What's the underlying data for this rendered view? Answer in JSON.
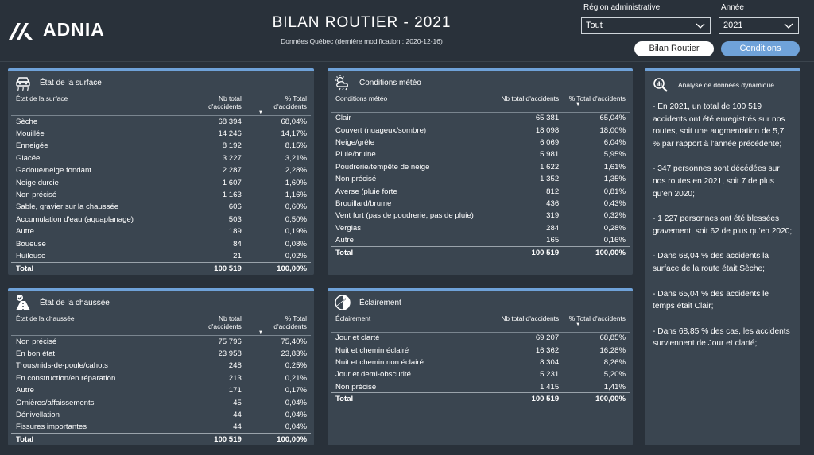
{
  "header": {
    "logo_text": "ADNIA",
    "title": "BILAN ROUTIER - 2021",
    "subtitle": "Données Québec (dernière modification : 2020-12-16)"
  },
  "filters": {
    "region_label": "Région administrative",
    "region_value": "Tout",
    "year_label": "Année",
    "year_value": "2021"
  },
  "nav": {
    "bilan_label": "Bilan Routier",
    "conditions_label": "Conditions"
  },
  "colors": {
    "accent": "#6fa2d9",
    "background": "#29313a",
    "card": "#3a4550"
  },
  "surface": {
    "title": "État de la surface",
    "icon": "car-skid-icon",
    "columns": [
      "État de la surface",
      "Nb total d'accidents",
      "% Total d'accidents"
    ],
    "rows": [
      [
        "Sèche",
        "68 394",
        "68,04%"
      ],
      [
        "Mouillée",
        "14 246",
        "14,17%"
      ],
      [
        "Enneigée",
        "8 192",
        "8,15%"
      ],
      [
        "Glacée",
        "3 227",
        "3,21%"
      ],
      [
        "Gadoue/neige fondant",
        "2 287",
        "2,28%"
      ],
      [
        "Neige durcie",
        "1 607",
        "1,60%"
      ],
      [
        "Non précisé",
        "1 163",
        "1,16%"
      ],
      [
        "Sable, gravier sur la chaussée",
        "606",
        "0,60%"
      ],
      [
        "Accumulation d'eau (aquaplanage)",
        "503",
        "0,50%"
      ],
      [
        "Autre",
        "189",
        "0,19%"
      ],
      [
        "Boueuse",
        "84",
        "0,08%"
      ],
      [
        "Huileuse",
        "21",
        "0,02%"
      ]
    ],
    "total": [
      "Total",
      "100 519",
      "100,00%"
    ]
  },
  "meteo": {
    "title": "Conditions météo",
    "icon": "weather-icon",
    "columns": [
      "Conditions météo",
      "Nb total d'accidents",
      "% Total d'accidents"
    ],
    "rows": [
      [
        "Clair",
        "65 381",
        "65,04%"
      ],
      [
        "Couvert (nuageux/sombre)",
        "18 098",
        "18,00%"
      ],
      [
        "Neige/grêle",
        "6 069",
        "6,04%"
      ],
      [
        "Pluie/bruine",
        "5 981",
        "5,95%"
      ],
      [
        "Poudrerie/tempête de neige",
        "1 622",
        "1,61%"
      ],
      [
        "Non précisé",
        "1 352",
        "1,35%"
      ],
      [
        "Averse (pluie forte",
        "812",
        "0,81%"
      ],
      [
        "Brouillard/brume",
        "436",
        "0,43%"
      ],
      [
        "Vent fort (pas de poudrerie, pas de pluie)",
        "319",
        "0,32%"
      ],
      [
        "Verglas",
        "284",
        "0,28%"
      ],
      [
        "Autre",
        "165",
        "0,16%"
      ]
    ],
    "total": [
      "Total",
      "100 519",
      "100,00%"
    ]
  },
  "chaussee": {
    "title": "État de la chaussée",
    "icon": "road-check-icon",
    "columns": [
      "État de la chaussée",
      "Nb total d'accidents",
      "% Total d'accidents"
    ],
    "rows": [
      [
        "Non précisé",
        "75 796",
        "75,40%"
      ],
      [
        "En bon état",
        "23 958",
        "23,83%"
      ],
      [
        "Trous/nids-de-poule/cahots",
        "248",
        "0,25%"
      ],
      [
        "En construction/en réparation",
        "213",
        "0,21%"
      ],
      [
        "Autre",
        "171",
        "0,17%"
      ],
      [
        "Ornières/affaissements",
        "45",
        "0,04%"
      ],
      [
        "Dénivellation",
        "44",
        "0,04%"
      ],
      [
        "Fissures importantes",
        "44",
        "0,04%"
      ]
    ],
    "total": [
      "Total",
      "100 519",
      "100,00%"
    ]
  },
  "eclairement": {
    "title": "Éclairement",
    "icon": "lighting-icon",
    "columns": [
      "Éclairement",
      "Nb total d'accidents",
      "% Total d'accidents"
    ],
    "rows": [
      [
        "Jour et clarté",
        "69 207",
        "68,85%"
      ],
      [
        "Nuit et chemin éclairé",
        "16 362",
        "16,28%"
      ],
      [
        "Nuit et chemin non éclairé",
        "8 304",
        "8,26%"
      ],
      [
        "Jour et demi-obscurité",
        "5 231",
        "5,20%"
      ],
      [
        "Non précisé",
        "1 415",
        "1,41%"
      ]
    ],
    "total": [
      "Total",
      "100 519",
      "100,00%"
    ]
  },
  "analysis": {
    "title": "Analyse de données dynamique",
    "icon": "analysis-icon",
    "paragraphs": [
      "- En 2021, un total de 100 519 accidents ont été enregistrés sur nos routes, soit une augmentation de 5,7 % par rapport à l'année précédente;",
      "- 347 personnes sont décédées sur nos routes en 2021, soit 7 de plus qu'en 2020;",
      "- 1 227 personnes ont été blessées gravement, soit 62 de plus qu'en 2020;",
      "- Dans 68,04 % des accidents la surface de la route était Sèche;",
      "- Dans 65,04 % des accidents le temps était Clair;",
      "- Dans 68,85 % des cas, les accidents surviennent de Jour et clarté;"
    ]
  }
}
